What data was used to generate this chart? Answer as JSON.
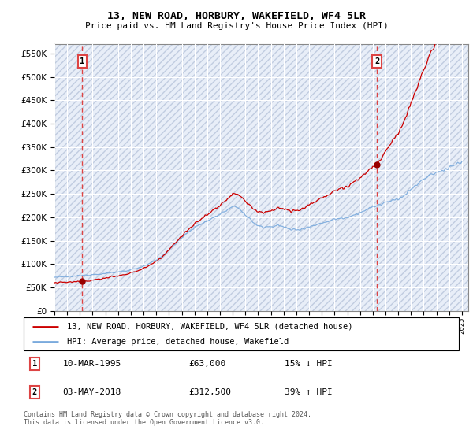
{
  "title": "13, NEW ROAD, HORBURY, WAKEFIELD, WF4 5LR",
  "subtitle": "Price paid vs. HM Land Registry's House Price Index (HPI)",
  "ytick_values": [
    0,
    50000,
    100000,
    150000,
    200000,
    250000,
    300000,
    350000,
    400000,
    450000,
    500000,
    550000
  ],
  "ylim": [
    0,
    570000
  ],
  "xlim_start": 1993.0,
  "xlim_end": 2025.5,
  "transaction1_year": 1995.19,
  "transaction1_price": 63000,
  "transaction1_label": "1",
  "transaction1_date": "10-MAR-1995",
  "transaction2_year": 2018.33,
  "transaction2_price": 312500,
  "transaction2_label": "2",
  "transaction2_date": "03-MAY-2018",
  "hpi_line_color": "#7aaadd",
  "price_line_color": "#cc0000",
  "vline_color": "#dd4444",
  "dot_color": "#990000",
  "background_color": "#e8eef8",
  "hatch_color": "#c0cce0",
  "grid_color": "#ffffff",
  "legend_line1": "13, NEW ROAD, HORBURY, WAKEFIELD, WF4 5LR (detached house)",
  "legend_line2": "HPI: Average price, detached house, Wakefield",
  "footer": "Contains HM Land Registry data © Crown copyright and database right 2024.\nThis data is licensed under the Open Government Licence v3.0.",
  "xtick_years": [
    1993,
    1994,
    1995,
    1996,
    1997,
    1998,
    1999,
    2000,
    2001,
    2002,
    2003,
    2004,
    2005,
    2006,
    2007,
    2008,
    2009,
    2010,
    2011,
    2012,
    2013,
    2014,
    2015,
    2016,
    2017,
    2018,
    2019,
    2020,
    2021,
    2022,
    2023,
    2024,
    2025
  ],
  "table_row1": [
    "1",
    "10-MAR-1995",
    "£63,000",
    "15% ↓ HPI"
  ],
  "table_row2": [
    "2",
    "03-MAY-2018",
    "£312,500",
    "39% ↑ HPI"
  ]
}
